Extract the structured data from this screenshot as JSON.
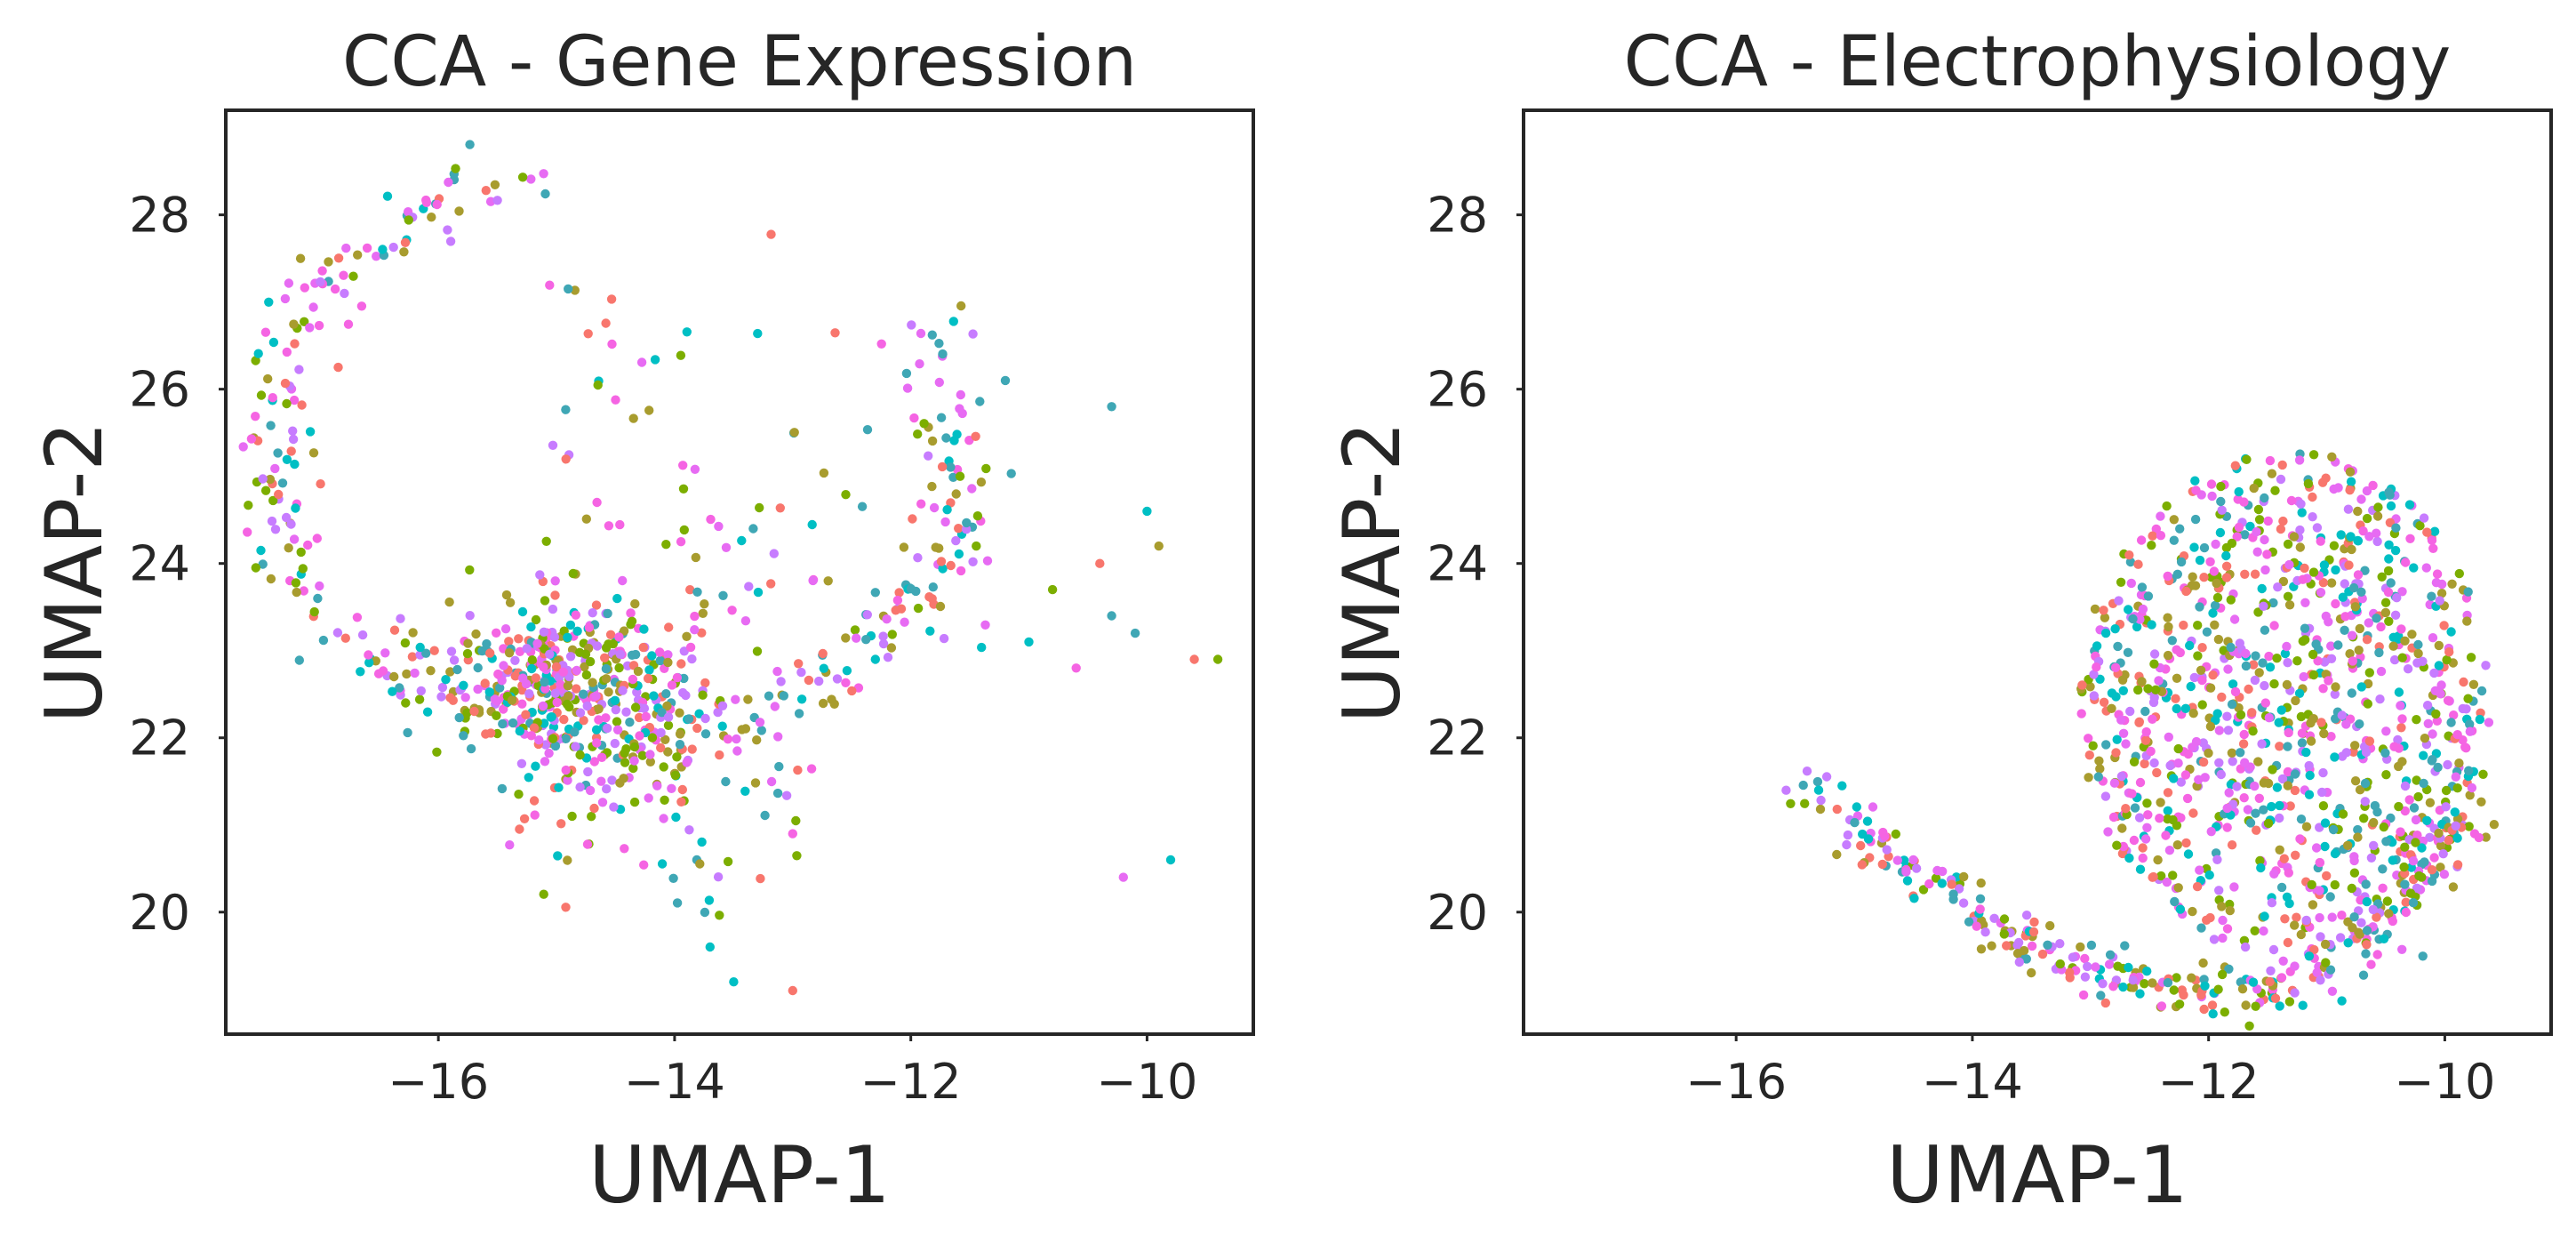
{
  "chart_data": [
    {
      "type": "scatter",
      "title": "CCA - Gene Expression",
      "xlabel": "UMAP-1",
      "ylabel": "UMAP-2",
      "xlim": [
        -17.8,
        -9.1
      ],
      "ylim": [
        18.6,
        29.2
      ],
      "xticks": [
        -16,
        -14,
        -12,
        -10
      ],
      "yticks": [
        20,
        22,
        24,
        26,
        28
      ],
      "xtick_labels": [
        "−16",
        "−14",
        "−12",
        "−10"
      ],
      "ytick_labels": [
        "20",
        "22",
        "24",
        "26",
        "28"
      ],
      "grid": false,
      "legend": "none",
      "colors": [
        "#f564e3",
        "#c77cff",
        "#00bfc4",
        "#3fa7b5",
        "#7cae00",
        "#a89c2e",
        "#f8766d",
        "#e76bf3"
      ],
      "seed": 7,
      "structure": [
        {
          "shape": "ring",
          "cx": -14.5,
          "cy": 25.3,
          "rx": 2.9,
          "ry": 3.3,
          "t0": 0.3,
          "t1": 5.2,
          "n": 360,
          "jitter": 0.18
        },
        {
          "shape": "blob",
          "cx": -14.9,
          "cy": 22.8,
          "sx": 0.55,
          "sy": 0.35,
          "n": 330
        },
        {
          "shape": "blob",
          "cx": -14.4,
          "cy": 21.9,
          "sx": 0.65,
          "sy": 0.45,
          "n": 140
        },
        {
          "shape": "blob",
          "cx": -13.4,
          "cy": 24.0,
          "sx": 0.9,
          "sy": 0.9,
          "n": 60
        },
        {
          "shape": "blob",
          "cx": -14.2,
          "cy": 20.6,
          "sx": 0.6,
          "sy": 0.7,
          "n": 25
        },
        {
          "shape": "blob",
          "cx": -14.0,
          "cy": 25.8,
          "sx": 1.0,
          "sy": 1.0,
          "n": 30
        }
      ],
      "points": [
        {
          "x": -10.3,
          "y": 25.8
        },
        {
          "x": -10.0,
          "y": 24.6
        },
        {
          "x": -9.9,
          "y": 24.2
        },
        {
          "x": -10.4,
          "y": 24.0
        },
        {
          "x": -10.8,
          "y": 23.7
        },
        {
          "x": -11.0,
          "y": 23.1
        },
        {
          "x": -10.3,
          "y": 23.4
        },
        {
          "x": -10.1,
          "y": 23.2
        },
        {
          "x": -10.6,
          "y": 22.8
        },
        {
          "x": -9.6,
          "y": 22.9
        },
        {
          "x": -9.4,
          "y": 22.9
        },
        {
          "x": -10.2,
          "y": 20.4
        },
        {
          "x": -9.8,
          "y": 20.6
        },
        {
          "x": -12.3,
          "y": 22.9
        },
        {
          "x": -13.0,
          "y": 20.9
        },
        {
          "x": -13.0,
          "y": 19.1
        },
        {
          "x": -13.5,
          "y": 19.2
        },
        {
          "x": -11.2,
          "y": 26.1
        },
        {
          "x": -13.7,
          "y": 19.6
        },
        {
          "x": -12.7,
          "y": 23.8
        }
      ]
    },
    {
      "type": "scatter",
      "title": "CCA - Electrophysiology",
      "xlabel": "UMAP-1",
      "ylabel": "UMAP-2",
      "xlim": [
        -17.8,
        -9.1
      ],
      "ylim": [
        18.6,
        29.2
      ],
      "xticks": [
        -16,
        -14,
        -12,
        -10
      ],
      "yticks": [
        20,
        22,
        24,
        26,
        28
      ],
      "xtick_labels": [
        "−16",
        "−14",
        "−12",
        "−10"
      ],
      "ytick_labels": [
        "20",
        "22",
        "24",
        "26",
        "28"
      ],
      "grid": false,
      "legend": "none",
      "colors": [
        "#f564e3",
        "#c77cff",
        "#00bfc4",
        "#3fa7b5",
        "#7cae00",
        "#a89c2e",
        "#f8766d",
        "#e76bf3"
      ],
      "seed": 13,
      "structure": [
        {
          "shape": "ellipse_fill",
          "cx": -11.35,
          "cy": 22.4,
          "rx": 1.75,
          "ry": 2.9,
          "n": 1050
        },
        {
          "shape": "arc",
          "x0": -15.4,
          "y0": 21.5,
          "x1": -11.3,
          "y1": 19.15,
          "bend": -1.6,
          "n": 210,
          "jitter": 0.14
        },
        {
          "shape": "arc",
          "x0": -11.3,
          "y0": 19.15,
          "x1": -9.85,
          "y1": 21.2,
          "bend": -0.5,
          "n": 110,
          "jitter": 0.16
        }
      ],
      "points": []
    }
  ]
}
